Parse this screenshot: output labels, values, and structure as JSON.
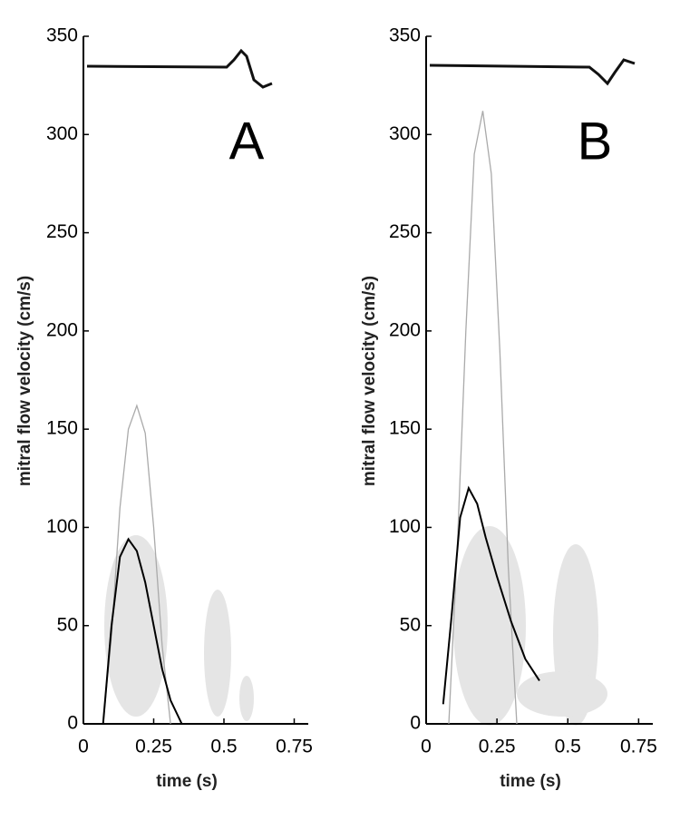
{
  "chart_data": [
    {
      "type": "line",
      "annotation": "A",
      "x_label": "time (s)",
      "y_label": "mitral flow velocity (cm/s)",
      "xlim": [
        0,
        0.8
      ],
      "ylim": [
        0,
        350
      ],
      "xticks": [
        0,
        0.25,
        0.5,
        0.75
      ],
      "yticks": [
        0,
        50,
        100,
        150,
        200,
        250,
        300,
        350
      ],
      "series": [
        {
          "color": "#aaaaaa",
          "width": 1.3,
          "x": [
            0.07,
            0.1,
            0.13,
            0.16,
            0.19,
            0.22,
            0.25,
            0.28,
            0.31
          ],
          "values": [
            0,
            45,
            110,
            150,
            162,
            148,
            100,
            40,
            0
          ]
        },
        {
          "color": "#000000",
          "width": 2,
          "x": [
            0.07,
            0.1,
            0.13,
            0.16,
            0.19,
            0.22,
            0.25,
            0.28,
            0.31,
            0.35
          ],
          "values": [
            0,
            50,
            85,
            94,
            88,
            72,
            50,
            28,
            12,
            0
          ]
        }
      ]
    },
    {
      "type": "line",
      "annotation": "B",
      "x_label": "time (s)",
      "y_label": "mitral flow velocity (cm/s)",
      "xlim": [
        0,
        0.8
      ],
      "ylim": [
        0,
        350
      ],
      "xticks": [
        0,
        0.25,
        0.5,
        0.75
      ],
      "yticks": [
        0,
        50,
        100,
        150,
        200,
        250,
        300,
        350
      ],
      "series": [
        {
          "color": "#aaaaaa",
          "width": 1.3,
          "x": [
            0.08,
            0.11,
            0.14,
            0.17,
            0.2,
            0.23,
            0.26,
            0.29,
            0.32
          ],
          "values": [
            0,
            90,
            200,
            290,
            312,
            280,
            190,
            80,
            0
          ]
        },
        {
          "color": "#000000",
          "width": 2,
          "x": [
            0.06,
            0.09,
            0.12,
            0.15,
            0.18,
            0.21,
            0.25,
            0.3,
            0.35,
            0.4
          ],
          "values": [
            10,
            55,
            105,
            120,
            112,
            95,
            75,
            52,
            33,
            22
          ]
        }
      ]
    }
  ]
}
